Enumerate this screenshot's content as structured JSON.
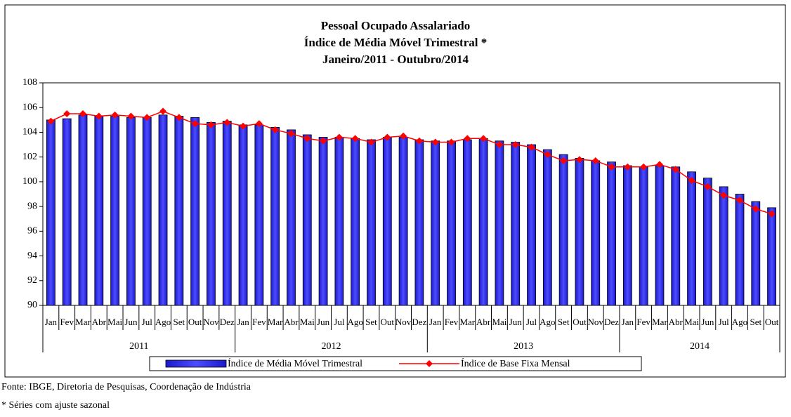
{
  "chart_data": {
    "type": "bar",
    "title": [
      "Pessoal Ocupado Assalariado",
      "Índice de Média Móvel Trimestral *",
      "Janeiro/2011 - Outubro/2014"
    ],
    "categories": [
      "Jan",
      "Fev",
      "Mar",
      "Abr",
      "Mai",
      "Jun",
      "Jul",
      "Ago",
      "Set",
      "Out",
      "Nov",
      "Dez",
      "Jan",
      "Fev",
      "Mar",
      "Abr",
      "Mai",
      "Jun",
      "Jul",
      "Ago",
      "Set",
      "Out",
      "Nov",
      "Dez",
      "Jan",
      "Fev",
      "Mar",
      "Abr",
      "Mai",
      "Jun",
      "Jul",
      "Ago",
      "Set",
      "Out",
      "Nov",
      "Dez",
      "Jan",
      "Fev",
      "Mar",
      "Abr",
      "Mai",
      "Jun",
      "Jul",
      "Ago",
      "Set",
      "Out"
    ],
    "groups": [
      "2011",
      "2012",
      "2013",
      "2014"
    ],
    "series": [
      {
        "name": "Índice de Média Móvel Trimestral",
        "type": "bar",
        "color": "#3333ff",
        "values": [
          105.0,
          105.1,
          105.4,
          105.3,
          105.3,
          105.2,
          105.2,
          105.4,
          105.3,
          105.2,
          104.8,
          104.9,
          104.6,
          104.6,
          104.4,
          104.2,
          103.8,
          103.6,
          103.6,
          103.5,
          103.4,
          103.6,
          103.6,
          103.4,
          103.3,
          103.3,
          103.4,
          103.5,
          103.3,
          103.2,
          103.0,
          102.6,
          102.2,
          101.9,
          101.7,
          101.6,
          101.3,
          101.2,
          101.3,
          101.2,
          100.8,
          100.3,
          99.6,
          99.0,
          98.4,
          97.9
        ]
      },
      {
        "name": "Índice de Base Fixa Mensal",
        "type": "line",
        "color": "#ff0000",
        "values": [
          104.9,
          105.5,
          105.5,
          105.3,
          105.4,
          105.3,
          105.2,
          105.7,
          105.2,
          104.7,
          104.6,
          104.8,
          104.5,
          104.7,
          104.2,
          103.9,
          103.5,
          103.3,
          103.6,
          103.5,
          103.2,
          103.6,
          103.7,
          103.3,
          103.2,
          103.2,
          103.5,
          103.5,
          103.0,
          103.0,
          102.8,
          102.2,
          101.7,
          101.8,
          101.7,
          101.2,
          101.2,
          101.2,
          101.4,
          101.0,
          100.1,
          99.6,
          98.9,
          98.5,
          97.8,
          97.4
        ]
      }
    ],
    "ylim": [
      90,
      108
    ],
    "yticks": [
      90,
      92,
      94,
      96,
      98,
      100,
      102,
      104,
      106,
      108
    ],
    "legend": "bottom",
    "notes": [
      "Fonte: IBGE, Diretoria de Pesquisas, Coordenação de Indústria",
      "* Séries com ajuste sazonal"
    ]
  }
}
